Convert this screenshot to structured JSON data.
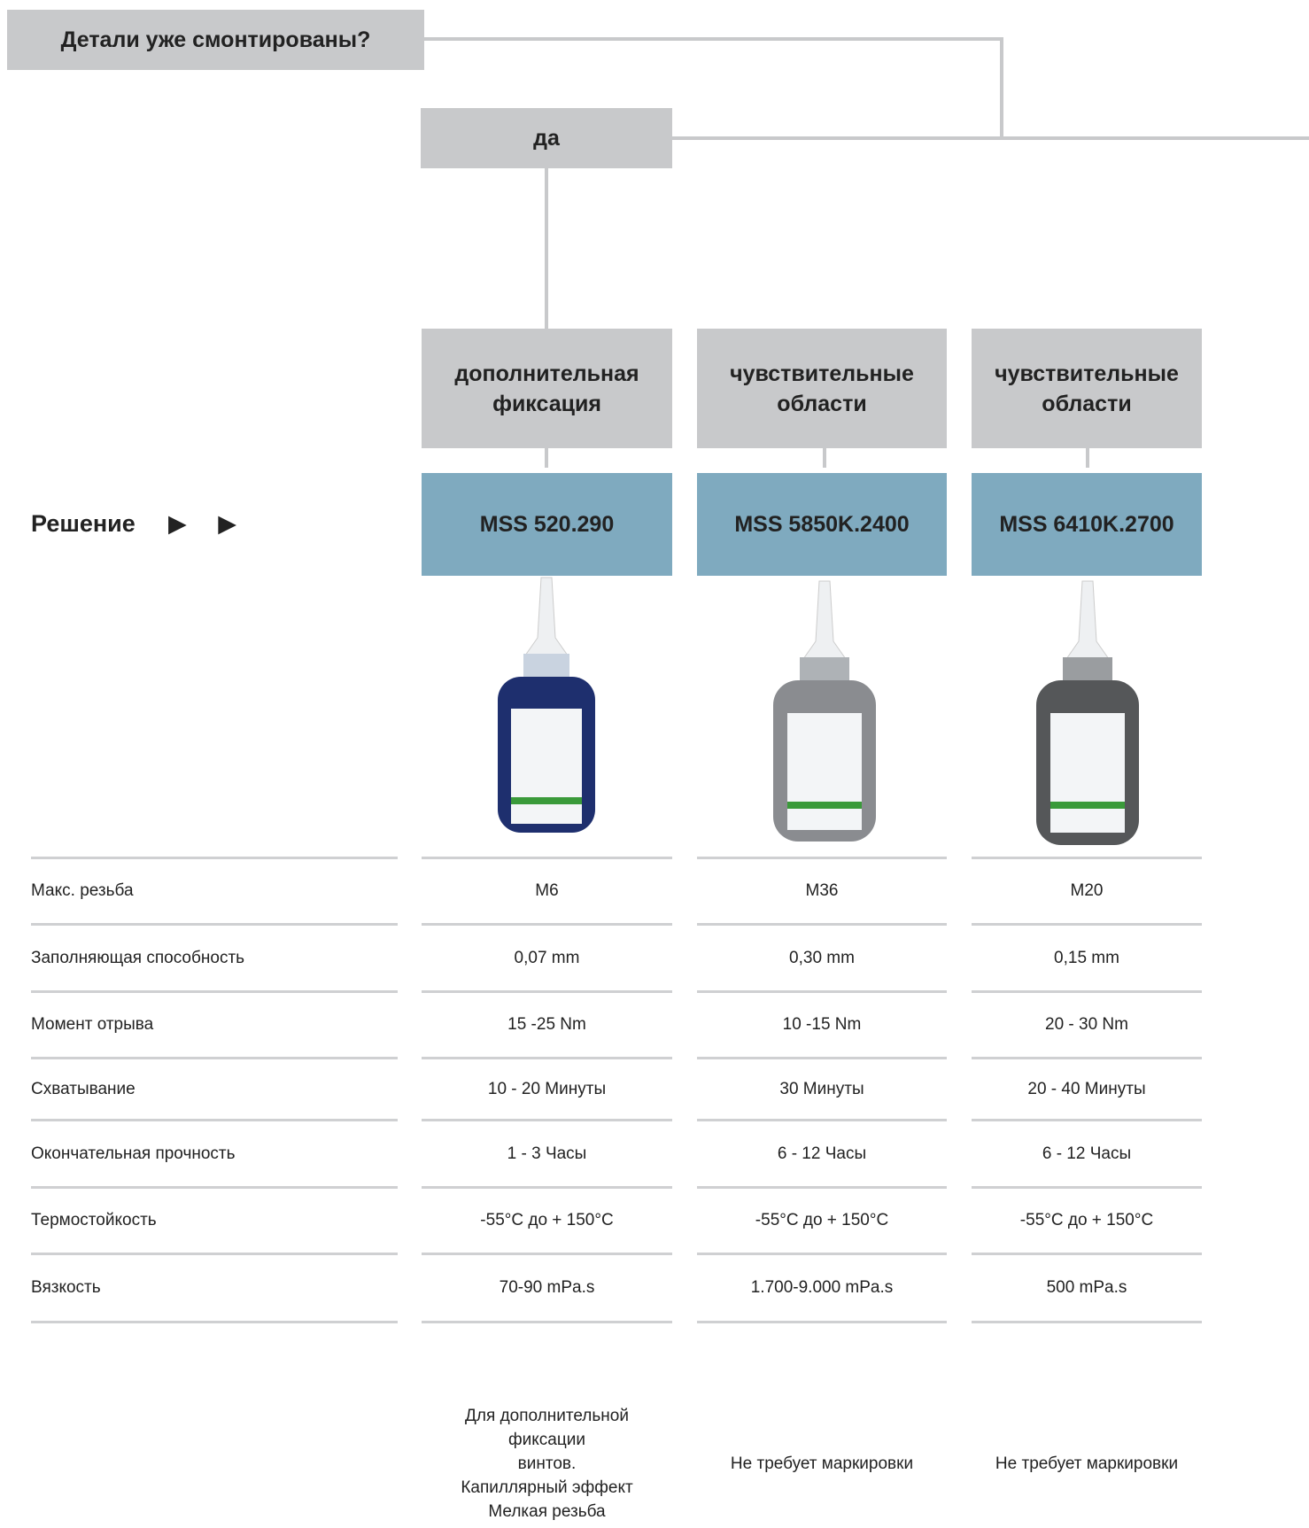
{
  "question": "Детали уже смонтированы?",
  "answer": "да",
  "solution_label": "Решение",
  "solution_arrows": "▶ ▶",
  "row_labels": [
    "Макс. резьба",
    "Заполняющая способность",
    "Момент отрыва",
    "Схватывание",
    "Окончательная прочность",
    "Термостойкость",
    "Вязкость"
  ],
  "columns": [
    {
      "category": [
        "дополнительная",
        "фиксация"
      ],
      "product": "MSS 520.290",
      "specs": [
        "M6",
        "0,07 mm",
        "15 -25 Nm",
        "10 - 20 Минуты",
        "1 - 3 Часы",
        "-55°C до + 150°C",
        "70-90 mPa.s"
      ],
      "note": [
        "Для дополнительной",
        "фиксации",
        "винтов.",
        "Капиллярный эффект",
        "Мелкая резьба"
      ]
    },
    {
      "category": [
        "чувствительные",
        "области"
      ],
      "product": "MSS 5850K.2400",
      "specs": [
        "M36",
        "0,30 mm",
        "10 -15 Nm",
        "30 Минуты",
        "6 - 12 Часы",
        "-55°C до + 150°C",
        "1.700-9.000 mPa.s"
      ],
      "note": [
        "Не требует маркировки"
      ]
    },
    {
      "category": [
        "чувствительные",
        "области"
      ],
      "product": "MSS 6410K.2700",
      "specs": [
        "M20",
        "0,15 mm",
        "20 - 30 Nm",
        "20 - 40 Минуты",
        "6 - 12 Часы",
        "-55°C до + 150°C",
        "500 mPa.s"
      ],
      "note": [
        "Не требует маркировки"
      ]
    }
  ]
}
